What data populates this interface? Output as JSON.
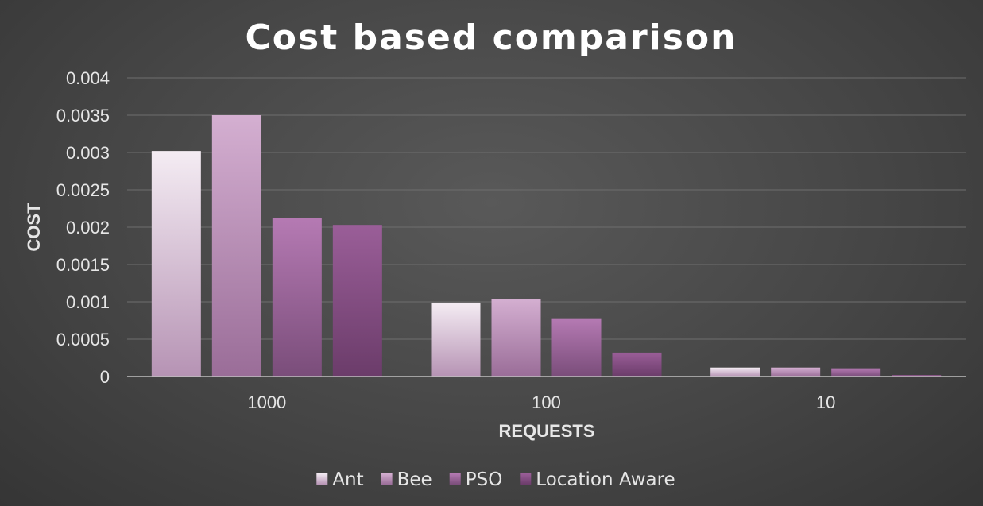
{
  "chart_data": {
    "type": "bar",
    "title": "Cost based comparison",
    "xlabel": "REQUESTS",
    "ylabel": "COST",
    "categories": [
      "1000",
      "100",
      "10"
    ],
    "series": [
      {
        "name": "Ant",
        "values": [
          0.00302,
          0.00099,
          0.00012
        ],
        "color_top": "#f4ecf3",
        "color_bottom": "#b693b4"
      },
      {
        "name": "Bee",
        "values": [
          0.0035,
          0.00104,
          0.00012
        ],
        "color_top": "#d4afd1",
        "color_bottom": "#9a6d98"
      },
      {
        "name": "PSO",
        "values": [
          0.00212,
          0.00078,
          0.00011
        ],
        "color_top": "#b57ab3",
        "color_bottom": "#7a4d7a"
      },
      {
        "name": "Location Aware",
        "values": [
          0.00203,
          0.00032,
          2e-05
        ],
        "color_top": "#9a5e98",
        "color_bottom": "#6b3c6a"
      }
    ],
    "yticks": [
      "0",
      "0.0005",
      "0.001",
      "0.0015",
      "0.002",
      "0.0025",
      "0.003",
      "0.0035",
      "0.004"
    ],
    "ylim": [
      0,
      0.004
    ],
    "grid": true,
    "legend_position": "bottom"
  }
}
